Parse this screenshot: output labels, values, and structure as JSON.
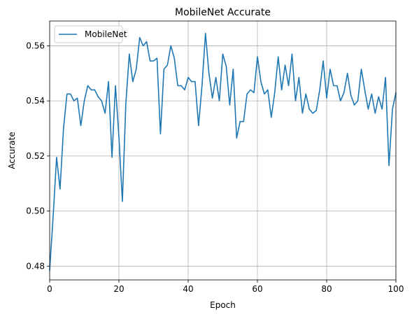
{
  "chart_data": {
    "type": "line",
    "title": "MobileNet Accurate",
    "xlabel": "Epoch",
    "ylabel": "Accurate",
    "xlim": [
      0,
      100
    ],
    "ylim": [
      0.475,
      0.569
    ],
    "x_ticks": [
      0,
      20,
      40,
      60,
      80,
      100
    ],
    "x_tick_labels": [
      "0",
      "20",
      "40",
      "60",
      "80",
      "100"
    ],
    "y_ticks": [
      0.48,
      0.5,
      0.52,
      0.54,
      0.56
    ],
    "y_tick_labels": [
      "0.48",
      "0.50",
      "0.52",
      "0.54",
      "0.56"
    ],
    "grid": true,
    "legend_position": "upper-left",
    "series": [
      {
        "name": "MobileNet",
        "color": "#1f77b4",
        "x": [
          0,
          1,
          2,
          3,
          4,
          5,
          6,
          7,
          8,
          9,
          10,
          11,
          12,
          13,
          14,
          15,
          16,
          17,
          18,
          19,
          20,
          21,
          22,
          23,
          24,
          25,
          26,
          27,
          28,
          29,
          30,
          31,
          32,
          33,
          34,
          35,
          36,
          37,
          38,
          39,
          40,
          41,
          42,
          43,
          44,
          45,
          46,
          47,
          48,
          49,
          50,
          51,
          52,
          53,
          54,
          55,
          56,
          57,
          58,
          59,
          60,
          61,
          62,
          63,
          64,
          65,
          66,
          67,
          68,
          69,
          70,
          71,
          72,
          73,
          74,
          75,
          76,
          77,
          78,
          79,
          80,
          81,
          82,
          83,
          84,
          85,
          86,
          87,
          88,
          89,
          90,
          91,
          92,
          93,
          94,
          95,
          96,
          97,
          98,
          99,
          100
        ],
        "values": [
          0.4785,
          0.498,
          0.5195,
          0.508,
          0.53,
          0.5425,
          0.5425,
          0.54,
          0.541,
          0.531,
          0.54,
          0.5455,
          0.544,
          0.544,
          0.5415,
          0.54,
          0.5355,
          0.547,
          0.5195,
          0.5455,
          0.527,
          0.5035,
          0.539,
          0.557,
          0.547,
          0.5515,
          0.563,
          0.56,
          0.5615,
          0.5545,
          0.5545,
          0.5555,
          0.528,
          0.5515,
          0.553,
          0.56,
          0.5555,
          0.5455,
          0.5455,
          0.544,
          0.5485,
          0.547,
          0.547,
          0.531,
          0.5455,
          0.5645,
          0.55,
          0.541,
          0.5485,
          0.54,
          0.557,
          0.5525,
          0.5385,
          0.5515,
          0.5265,
          0.5325,
          0.5325,
          0.5425,
          0.544,
          0.543,
          0.556,
          0.547,
          0.5425,
          0.544,
          0.534,
          0.543,
          0.556,
          0.544,
          0.553,
          0.5455,
          0.557,
          0.54,
          0.5485,
          0.5355,
          0.5425,
          0.537,
          0.5355,
          0.5365,
          0.544,
          0.5545,
          0.541,
          0.5515,
          0.5455,
          0.5455,
          0.54,
          0.543,
          0.55,
          0.542,
          0.5385,
          0.54,
          0.5515,
          0.544,
          0.537,
          0.5425,
          0.5355,
          0.5415,
          0.537,
          0.5485,
          0.5165,
          0.537,
          0.543
        ]
      }
    ]
  }
}
